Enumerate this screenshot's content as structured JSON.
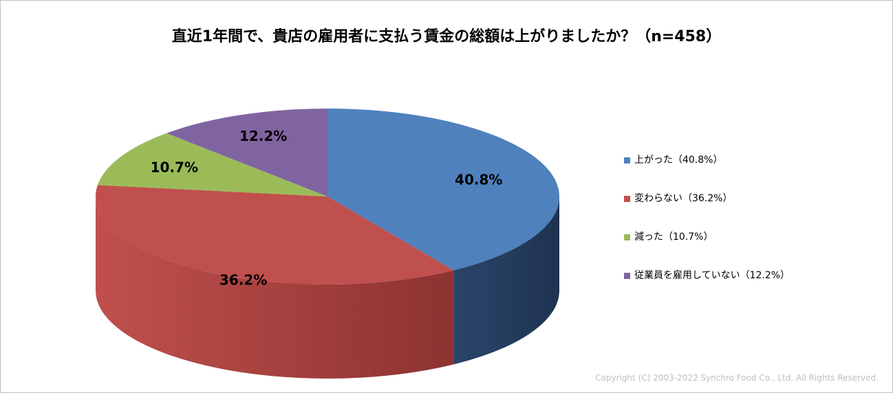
{
  "chart_data": {
    "type": "pie",
    "title": "直近1年間で、貴店の雇用者に支払う賃金の総額は上がりましたか？（n=458）",
    "slices": [
      {
        "label": "上がった",
        "value": 40.8,
        "display": "40.8%",
        "legend": "上がった（40.8%）",
        "color": "#4f81bd",
        "side_color": "#1f3351"
      },
      {
        "label": "変わらない",
        "value": 36.2,
        "display": "36.2%",
        "legend": "変わらない（36.2%）",
        "color": "#c0504d",
        "side_color": "#7d2a28"
      },
      {
        "label": "減った",
        "value": 10.7,
        "display": "10.7%",
        "legend": "減った（10.7%）",
        "color": "#9bbb59",
        "side_color": "#5f7535"
      },
      {
        "label": "従業員を雇用していない",
        "value": 12.2,
        "display": "12.2%",
        "legend": "従業員を雇用していない（12.2%）",
        "color": "#8064a2",
        "side_color": "#4d3b63"
      }
    ],
    "legend_position": "right"
  },
  "footer": {
    "copyright": "Copyright (C) 2003-2022   Synchro Food Co., Ltd. All Rights Reserved."
  }
}
